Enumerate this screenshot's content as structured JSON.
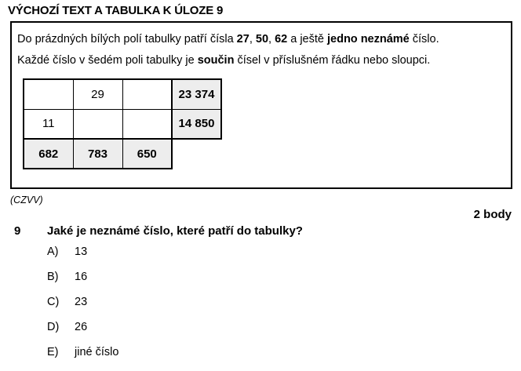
{
  "title": "VÝCHOZÍ TEXT A TABULKA K ÚLOZE 9",
  "stimulus": {
    "line1": [
      "Do prázdných bílých polí tabulky patří čísla ",
      "27",
      ", ",
      "50",
      ", ",
      "62",
      " a ještě ",
      "jedno neznámé",
      " číslo."
    ],
    "line2": [
      "Každé číslo v šedém poli tabulky je ",
      "součin",
      " čísel v příslušném řádku nebo sloupci."
    ]
  },
  "table": {
    "gray_fill": "#ededed",
    "border_color": "#000000",
    "rows": [
      [
        "",
        "29",
        "",
        "23 374"
      ],
      [
        "11",
        "",
        "",
        "14 850"
      ],
      [
        "682",
        "783",
        "650"
      ]
    ]
  },
  "source": "(CZVV)",
  "points": "2 body",
  "question": {
    "number": "9",
    "text": "Jaké je neznámé číslo, které patří do tabulky?"
  },
  "options": [
    {
      "label": "A)",
      "value": "13"
    },
    {
      "label": "B)",
      "value": "16"
    },
    {
      "label": "C)",
      "value": "23"
    },
    {
      "label": "D)",
      "value": "26"
    },
    {
      "label": "E)",
      "value": "jiné číslo"
    }
  ]
}
